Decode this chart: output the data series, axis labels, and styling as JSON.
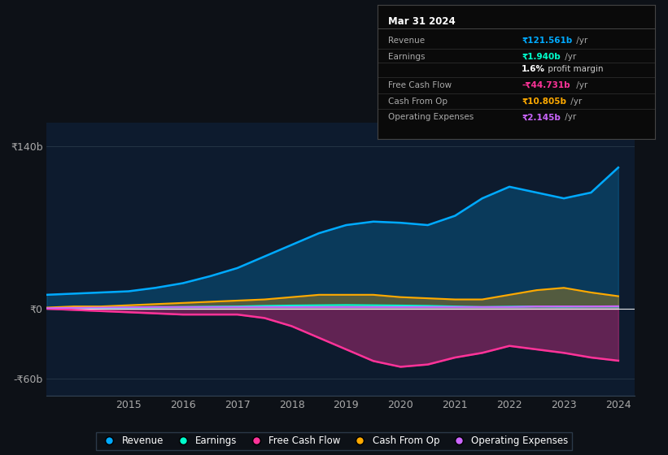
{
  "bg_color": "#0d1117",
  "plot_bg_color": "#0d1b2e",
  "title": "Mar 31 2024",
  "tooltip_bg": "#0a0a0a",
  "years": [
    2013.5,
    2014,
    2014.5,
    2015,
    2015.5,
    2016,
    2016.5,
    2017,
    2017.5,
    2018,
    2018.5,
    2019,
    2019.5,
    2020,
    2020.5,
    2021,
    2021.5,
    2022,
    2022.5,
    2023,
    2023.5,
    2024
  ],
  "revenue": [
    12,
    13,
    14,
    15,
    18,
    22,
    28,
    35,
    45,
    55,
    65,
    72,
    75,
    74,
    72,
    80,
    95,
    105,
    100,
    95,
    100,
    121.561
  ],
  "earnings": [
    0.5,
    0.6,
    0.8,
    1.0,
    1.2,
    1.5,
    1.8,
    2.0,
    2.5,
    2.8,
    3.0,
    3.2,
    3.0,
    2.8,
    2.5,
    2.0,
    1.5,
    1.8,
    2.0,
    1.8,
    2.0,
    1.94
  ],
  "free_cash_flow": [
    0,
    -1,
    -2,
    -3,
    -4,
    -5,
    -5,
    -5,
    -8,
    -15,
    -25,
    -35,
    -45,
    -50,
    -48,
    -42,
    -38,
    -32,
    -35,
    -38,
    -42,
    -44.731
  ],
  "cash_from_op": [
    1,
    2,
    2,
    3,
    4,
    5,
    6,
    7,
    8,
    10,
    12,
    12,
    12,
    10,
    9,
    8,
    8,
    12,
    16,
    18,
    14,
    10.805
  ],
  "operating_expenses": [
    0.5,
    0.8,
    1.0,
    1.2,
    1.5,
    1.5,
    1.5,
    1.5,
    1.5,
    1.5,
    1.5,
    1.5,
    1.5,
    1.5,
    1.5,
    1.5,
    1.5,
    1.5,
    2.0,
    2.0,
    2.0,
    2.145
  ],
  "revenue_color": "#00aaff",
  "earnings_color": "#00ffcc",
  "fcf_color": "#ff3399",
  "cash_op_color": "#ffaa00",
  "opex_color": "#cc66ff",
  "ylim_top": 160,
  "ylim_bottom": -75,
  "y_ticks": [
    140,
    0,
    -60
  ],
  "y_tick_labels": [
    "₹140b",
    "₹0",
    "-₹60b"
  ],
  "x_ticks": [
    2015,
    2016,
    2017,
    2018,
    2019,
    2020,
    2021,
    2022,
    2023,
    2024
  ],
  "legend_items": [
    "Revenue",
    "Earnings",
    "Free Cash Flow",
    "Cash From Op",
    "Operating Expenses"
  ],
  "legend_colors": [
    "#00aaff",
    "#00ffcc",
    "#ff3399",
    "#ffaa00",
    "#cc66ff"
  ],
  "tooltip_title": "Mar 31 2024",
  "tooltip_rows": [
    {
      "label": "Revenue",
      "value": "₹121.561b",
      "suffix": " /yr",
      "color": "#00aaff"
    },
    {
      "label": "Earnings",
      "value": "₹1.940b",
      "suffix": " /yr",
      "color": "#00ffcc"
    },
    {
      "label": "",
      "value": "1.6%",
      "suffix": " profit margin",
      "color": "#ffffff"
    },
    {
      "label": "Free Cash Flow",
      "value": "-₹44.731b",
      "suffix": " /yr",
      "color": "#ff3399"
    },
    {
      "label": "Cash From Op",
      "value": "₹10.805b",
      "suffix": " /yr",
      "color": "#ffaa00"
    },
    {
      "label": "Operating Expenses",
      "value": "₹2.145b",
      "suffix": " /yr",
      "color": "#cc66ff"
    }
  ]
}
